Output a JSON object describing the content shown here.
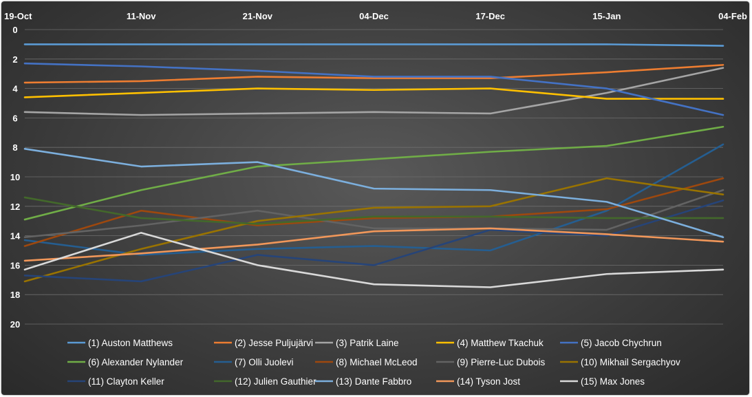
{
  "chart_data": {
    "type": "line",
    "x": [
      "19-Oct",
      "11-Nov",
      "21-Nov",
      "04-Dec",
      "17-Dec",
      "15-Jan",
      "04-Feb"
    ],
    "ylim": [
      0,
      20
    ],
    "y_reversed": true,
    "yticks": [
      "0",
      "2",
      "4",
      "6",
      "8",
      "10",
      "12",
      "14",
      "16",
      "18",
      "20"
    ],
    "grid": true,
    "legend_position": "bottom",
    "series": [
      {
        "name": "(1) Auston Matthews",
        "color": "#5b9bd5",
        "values": [
          1.0,
          1.0,
          1.0,
          1.0,
          1.0,
          1.0,
          1.1
        ]
      },
      {
        "name": "(2) Jesse Puljujärvi",
        "color": "#ed7d31",
        "values": [
          3.6,
          3.5,
          3.2,
          3.3,
          3.3,
          2.9,
          2.4
        ]
      },
      {
        "name": "(3) Patrik Laine",
        "color": "#a5a5a5",
        "values": [
          5.6,
          5.8,
          5.7,
          5.6,
          5.7,
          4.3,
          2.6
        ]
      },
      {
        "name": "(4) Matthew Tkachuk",
        "color": "#ffc000",
        "values": [
          4.6,
          4.3,
          4.0,
          4.1,
          4.0,
          4.7,
          4.7
        ]
      },
      {
        "name": "(5) Jacob Chychrun",
        "color": "#4472c4",
        "values": [
          2.3,
          2.5,
          2.8,
          3.2,
          3.2,
          4.0,
          5.8
        ]
      },
      {
        "name": "(6) Alexander Nylander",
        "color": "#70ad47",
        "values": [
          12.9,
          10.9,
          9.3,
          8.8,
          8.3,
          7.9,
          6.6
        ]
      },
      {
        "name": "(7) Olli Juolevi",
        "color": "#255e91",
        "values": [
          14.3,
          15.3,
          14.9,
          14.7,
          15.0,
          12.3,
          7.8
        ]
      },
      {
        "name": "(8) Michael McLeod",
        "color": "#9e480e",
        "values": [
          14.7,
          12.3,
          13.3,
          12.8,
          12.7,
          12.2,
          10.1
        ]
      },
      {
        "name": "(9) Pierre-Luc Dubois",
        "color": "#636363",
        "values": [
          14.1,
          13.3,
          12.3,
          13.5,
          13.5,
          13.6,
          10.9
        ]
      },
      {
        "name": "(10) Mikhail Sergachyov",
        "color": "#997300",
        "values": [
          17.1,
          14.9,
          13.0,
          12.1,
          12.0,
          10.1,
          11.2
        ]
      },
      {
        "name": "(11) Clayton Keller",
        "color": "#264478",
        "values": [
          16.7,
          17.1,
          15.3,
          16.0,
          13.6,
          14.0,
          11.6
        ]
      },
      {
        "name": "(12) Julien Gauthier",
        "color": "#43682b",
        "values": [
          11.4,
          12.8,
          13.2,
          12.7,
          12.7,
          12.8,
          12.8
        ]
      },
      {
        "name": "(13) Dante Fabbro",
        "color": "#7cafdd",
        "values": [
          8.1,
          9.3,
          9.0,
          10.8,
          10.9,
          11.7,
          14.1
        ]
      },
      {
        "name": "(14) Tyson Jost",
        "color": "#f1975a",
        "values": [
          15.7,
          15.2,
          14.6,
          13.7,
          13.5,
          13.9,
          14.4
        ]
      },
      {
        "name": "(15) Max Jones",
        "color": "#d9d9d9",
        "values": [
          16.3,
          13.8,
          16.0,
          17.3,
          17.5,
          16.6,
          16.3
        ]
      }
    ]
  }
}
